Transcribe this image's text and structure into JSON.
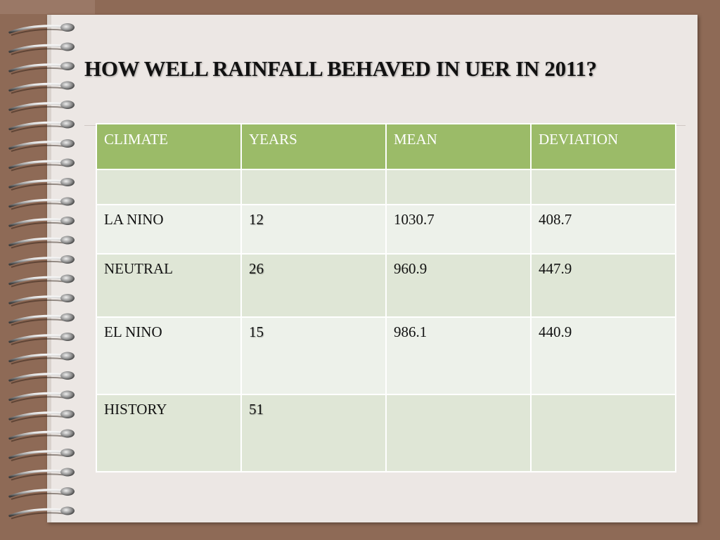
{
  "slide": {
    "title": "HOW WELL RAINFALL BEHAVED IN UER IN  2011?"
  },
  "table": {
    "headers": [
      "CLIMATE",
      "YEARS",
      "MEAN",
      "DEVIATION"
    ],
    "rows": [
      {
        "climate": "",
        "years": "",
        "mean": "",
        "deviation": ""
      },
      {
        "climate": "LA NINO",
        "years": "12",
        "mean": "1030.7",
        "deviation": "408.7"
      },
      {
        "climate": "NEUTRAL",
        "years": "26",
        "mean": "960.9",
        "deviation": "447.9"
      },
      {
        "climate": "EL NINO",
        "years": "15",
        "mean": "986.1",
        "deviation": "440.9"
      },
      {
        "climate": "HISTORY",
        "years": "51",
        "mean": "",
        "deviation": ""
      }
    ]
  },
  "colors": {
    "background": "#8e6a56",
    "paper": "#ece7e4",
    "header": "#9bbb68",
    "row_dark": "#dfe6d6",
    "row_light": "#edf1ea"
  },
  "decor": {
    "binding": "spiral-binding-icon"
  }
}
